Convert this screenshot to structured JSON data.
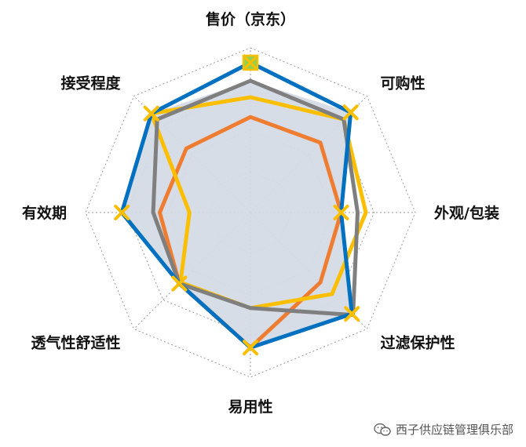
{
  "chart_data": {
    "type": "radar",
    "axes": [
      "售价（京东）",
      "可购性",
      "外观/包装",
      "过滤保护性",
      "易用性",
      "透气性舒适性",
      "有效期",
      "接受程度"
    ],
    "rmax": 10,
    "grid_levels": 4,
    "grid_style": "dotted octagons",
    "series": [
      {
        "values": [
          8.0,
          8.6,
          5.5,
          8.7,
          8.2,
          6.1,
          7.8,
          8.5
        ],
        "color": "#d5dbe6",
        "style": "area",
        "marker": "none"
      },
      {
        "values": [
          5.8,
          6.0,
          5.5,
          6.0,
          8.2,
          6.1,
          5.5,
          5.5
        ],
        "color": "#ef7d31",
        "style": "line",
        "marker": "none"
      },
      {
        "values": [
          7.0,
          8.0,
          7.0,
          7.0,
          5.8,
          6.0,
          3.7,
          8.5
        ],
        "color": "#fbbf00",
        "style": "line",
        "marker": "none"
      },
      {
        "values": [
          8.0,
          8.0,
          6.5,
          8.8,
          5.8,
          6.1,
          5.9,
          8.0
        ],
        "color": "#7f7f7f",
        "style": "line",
        "marker": "none"
      },
      {
        "values": [
          9.1,
          8.6,
          5.5,
          8.7,
          8.2,
          6.1,
          7.8,
          8.5
        ],
        "color": "#0070c0",
        "style": "line",
        "marker": "x"
      }
    ],
    "special_marker": {
      "axis_index": 0,
      "value": 9.1,
      "fill": "#92d050",
      "stroke": "#fbbf00"
    }
  },
  "watermark": {
    "text": "西子供应链管理俱乐部"
  }
}
